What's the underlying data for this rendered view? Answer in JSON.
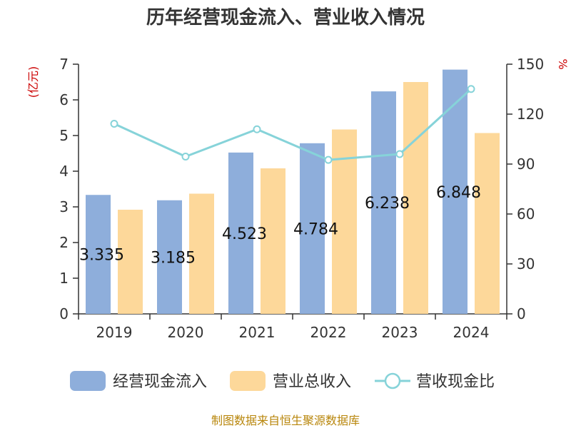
{
  "title": "历年经营现金流入、营业收入情况",
  "source": "制图数据来自恒生聚源数据库",
  "chart_data": {
    "type": "bar",
    "categories": [
      "2019",
      "2020",
      "2021",
      "2022",
      "2023",
      "2024"
    ],
    "series": [
      {
        "name": "经营现金流入",
        "type": "bar",
        "axis": "left",
        "color": "#8eaedb",
        "values": [
          3.335,
          3.185,
          4.523,
          4.784,
          6.238,
          6.848
        ],
        "labels": [
          "3.335",
          "3.185",
          "4.523",
          "4.784",
          "6.238",
          "6.848"
        ]
      },
      {
        "name": "营业总收入",
        "type": "bar",
        "axis": "left",
        "color": "#fdd89a",
        "values": [
          2.92,
          3.37,
          4.08,
          5.17,
          6.5,
          5.07
        ]
      },
      {
        "name": "营收现金比",
        "type": "line",
        "axis": "right",
        "color": "#86d3d9",
        "values": [
          114.2,
          94.5,
          110.9,
          92.5,
          96.0,
          135.1
        ]
      }
    ],
    "y_left": {
      "label": "(亿元)",
      "min": 0,
      "max": 7,
      "ticks": [
        "0",
        "1",
        "2",
        "3",
        "4",
        "5",
        "6",
        "7"
      ]
    },
    "y_right": {
      "label": "%",
      "min": 0,
      "max": 150,
      "ticks": [
        "0",
        "30",
        "60",
        "90",
        "120",
        "150"
      ]
    },
    "grid": false,
    "legend": "bottom"
  }
}
